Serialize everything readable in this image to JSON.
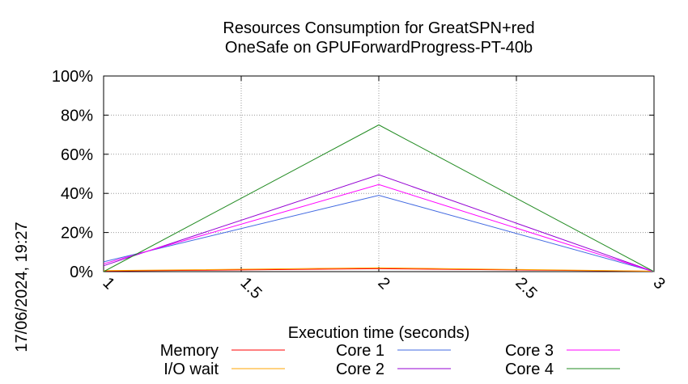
{
  "chart_data": {
    "type": "line",
    "title": "Resources Consumption for GreatSPN+red",
    "subtitle": "OneSafe on GPUForwardProgress-PT-40b",
    "xlabel": "Execution time (seconds)",
    "ylabel": "",
    "timestamp": "17/06/2024, 19:27",
    "xlim": [
      1,
      3
    ],
    "ylim": [
      0,
      100
    ],
    "x_ticks": [
      "1",
      "1.5",
      "2",
      "2.5",
      "3"
    ],
    "y_ticks": [
      "0%",
      "20%",
      "40%",
      "60%",
      "80%",
      "100%"
    ],
    "grid": true,
    "legend_position": "bottom",
    "x": [
      1,
      2,
      3
    ],
    "series": [
      {
        "name": "Memory",
        "color": "#ff0000",
        "values": [
          0.3,
          1.5,
          0.2
        ]
      },
      {
        "name": "I/O wait",
        "color": "#ffa500",
        "values": [
          0.5,
          2.0,
          0.2
        ]
      },
      {
        "name": "Core 1",
        "color": "#4169e1",
        "values": [
          5,
          39,
          0
        ]
      },
      {
        "name": "Core 2",
        "color": "#9400d3",
        "values": [
          3,
          49.5,
          0
        ]
      },
      {
        "name": "Core 3",
        "color": "#ff00ff",
        "values": [
          4,
          44.5,
          0
        ]
      },
      {
        "name": "Core 4",
        "color": "#228b22",
        "values": [
          0,
          75,
          0
        ]
      }
    ]
  }
}
